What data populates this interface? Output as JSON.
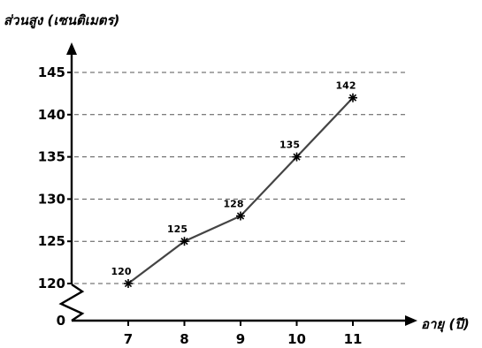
{
  "chart_data": {
    "type": "line",
    "title": "",
    "ylabel": "ส่วนสูง (เซนติเมตร)",
    "xlabel": "อายุ (ปี)",
    "x": [
      7,
      8,
      9,
      10,
      11
    ],
    "values": [
      120,
      125,
      128,
      135,
      142
    ],
    "data_labels": [
      "120",
      "125",
      "128",
      "135",
      "142"
    ],
    "x_ticks": [
      "7",
      "8",
      "9",
      "10",
      "11"
    ],
    "y_ticks": [
      "145",
      "140",
      "135",
      "130",
      "125",
      "120",
      "0"
    ],
    "y_tick_values": [
      145,
      140,
      135,
      130,
      125,
      120
    ],
    "ylim": [
      120,
      145
    ],
    "y_axis_break": true,
    "grid": "horizontal-dashed",
    "marker": "asterisk",
    "line_color": "#444444"
  }
}
